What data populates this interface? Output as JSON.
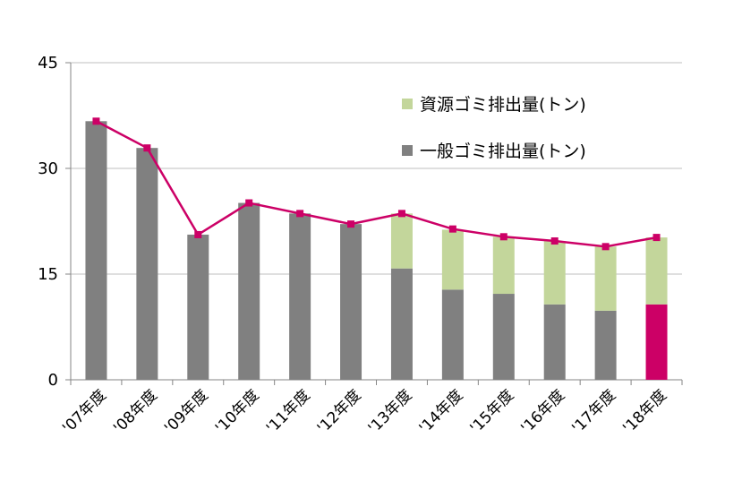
{
  "chart_data": {
    "type": "bar",
    "stacked": true,
    "categories": [
      "'07年度",
      "'08年度",
      "'09年度",
      "'10年度",
      "'11年度",
      "'12年度",
      "'13年度",
      "'14年度",
      "'15年度",
      "'16年度",
      "'17年度",
      "'18年度"
    ],
    "series": [
      {
        "name": "一般ゴミ排出量(トン)",
        "kind": "bar",
        "color": "#808080",
        "values": [
          36.7,
          32.9,
          20.6,
          25.1,
          23.6,
          22.1,
          15.8,
          12.8,
          12.2,
          10.7,
          9.8,
          10.7
        ]
      },
      {
        "name": "資源ゴミ排出量(トン)",
        "kind": "bar",
        "color": "#c3d69b",
        "values": [
          0,
          0,
          0,
          0,
          0,
          0,
          7.8,
          8.5,
          8.1,
          9.0,
          9.1,
          9.5
        ]
      },
      {
        "kind": "line",
        "color": "#cc0066",
        "values": [
          36.7,
          32.9,
          20.6,
          25.1,
          23.6,
          22.1,
          23.6,
          21.4,
          20.3,
          19.7,
          18.9,
          20.2
        ]
      }
    ],
    "highlight": {
      "index": 11,
      "color": "#cc0066"
    },
    "yticks": [
      0,
      15,
      30,
      45
    ],
    "ylim": [
      0,
      45
    ],
    "grid": true,
    "legend": {
      "position": "top-right"
    },
    "title": "",
    "xlabel": "",
    "ylabel": ""
  }
}
